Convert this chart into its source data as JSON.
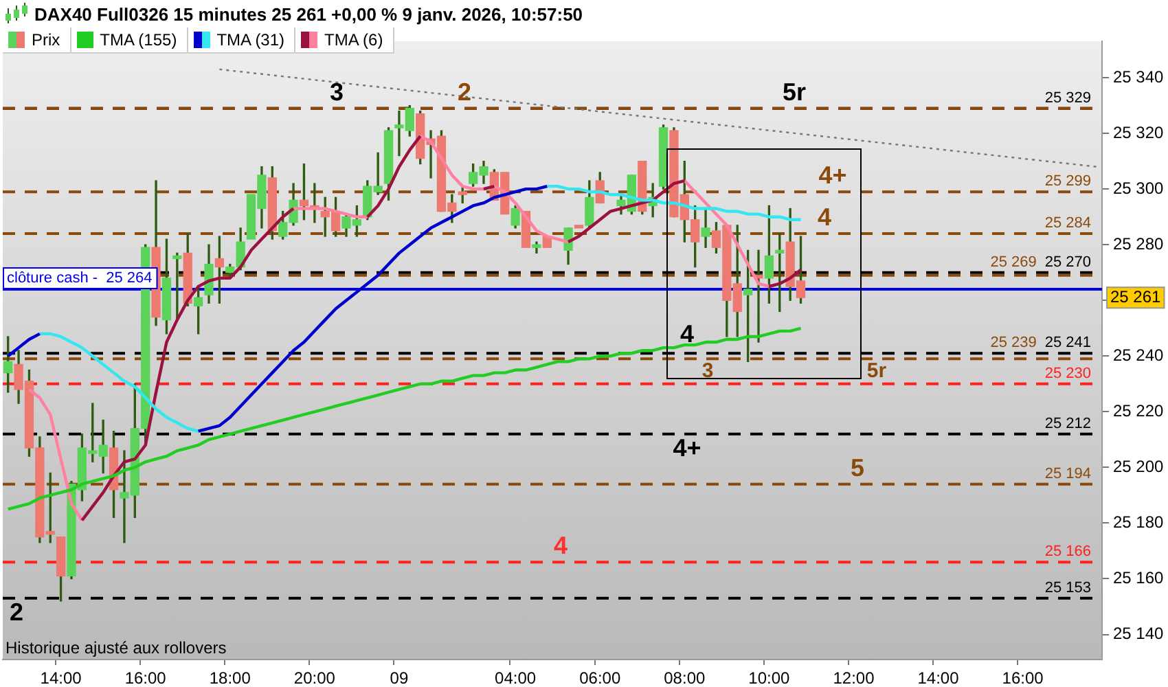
{
  "chart_data": {
    "type": "candlestick",
    "title": "DAX40 Full0326 15 minutes 25 261 +0,00 % 9 janv. 2026, 10:57:50",
    "categories": [
      null,
      null,
      null,
      null,
      null,
      "14:00",
      null,
      null,
      null,
      null,
      null,
      null,
      null,
      "16:00",
      null,
      null,
      null,
      null,
      null,
      null,
      null,
      "18:00",
      null,
      null,
      null,
      null,
      null,
      null,
      null,
      "20:00",
      null,
      null,
      null,
      null,
      null,
      null,
      null,
      "09",
      null,
      null,
      null,
      null,
      null,
      null,
      null,
      null,
      null,
      null,
      "04:00",
      null,
      null,
      null,
      null,
      null,
      null,
      null,
      "06:00",
      null,
      null,
      null,
      null,
      null,
      null,
      null,
      "08:00",
      null,
      null,
      null,
      null,
      null,
      null,
      null,
      "10:00",
      null,
      null,
      null,
      null,
      null,
      null,
      null,
      "12:00",
      null,
      null,
      null,
      null,
      null,
      null,
      null,
      "14:00",
      null,
      null,
      null,
      null,
      null,
      null,
      null,
      "16:00",
      null,
      null,
      null,
      null,
      null,
      null,
      null
    ],
    "series": [
      {
        "type": "line",
        "color": "#777777",
        "line_style": "dotted",
        "values": [
          null,
          null,
          null,
          null,
          null,
          null,
          null,
          null,
          null,
          null,
          null,
          null,
          null,
          null,
          null,
          null,
          null,
          null,
          null,
          null,
          25343,
          null,
          null,
          null,
          null,
          null,
          null,
          null,
          null,
          null,
          null,
          null,
          null,
          null,
          null,
          null,
          null,
          null,
          null,
          null,
          null,
          null,
          null,
          null,
          null,
          null,
          null,
          null,
          null,
          null,
          null,
          null,
          null,
          null,
          null,
          null,
          null,
          null,
          null,
          null,
          null,
          null,
          null,
          null,
          null,
          null,
          null,
          null,
          null,
          null,
          null,
          null,
          null,
          null,
          null,
          null,
          null,
          null,
          null,
          null,
          null,
          null,
          null,
          null,
          null,
          null,
          null,
          null,
          null,
          null,
          null,
          null,
          null,
          null,
          null,
          null,
          null,
          null,
          null,
          null,
          null,
          null,
          null,
          25308
        ]
      },
      {
        "name": "Prix",
        "ohlc": [
          [
            25234,
            25247,
            25227,
            25238
          ],
          [
            25237,
            25242,
            25223,
            25228
          ],
          [
            25231,
            25235,
            25204,
            25207
          ],
          [
            25207,
            25211,
            25173,
            25175
          ],
          [
            25177,
            25198,
            25173,
            25176
          ],
          [
            25175,
            25175,
            25152,
            25161
          ],
          [
            25161,
            25195,
            25160,
            25194
          ],
          [
            25192,
            25212,
            25188,
            25207
          ],
          [
            25205,
            25223,
            25202,
            25206
          ],
          [
            25204,
            25217,
            25198,
            25208
          ],
          [
            25207,
            25213,
            25182,
            25192
          ],
          [
            25189,
            25206,
            25173,
            25191
          ],
          [
            25190,
            25230,
            25182,
            25214
          ],
          [
            25214,
            25280,
            25208,
            25279
          ],
          [
            25279,
            25303,
            25251,
            25254
          ],
          [
            25253,
            25282,
            25248,
            25268
          ],
          [
            25275,
            25277,
            25253,
            25276
          ],
          [
            25277,
            25284,
            25258,
            25259
          ],
          [
            25258,
            25265,
            25248,
            25261
          ],
          [
            25262,
            25280,
            25259,
            25273
          ],
          [
            25275,
            25283,
            25259,
            25272
          ],
          [
            25270,
            25273,
            25268,
            25272
          ],
          [
            25272,
            25286,
            25271,
            25281
          ],
          [
            25282,
            25298,
            25282,
            25298
          ],
          [
            25293,
            25308,
            25286,
            25305
          ],
          [
            25304,
            25308,
            25282,
            25285
          ],
          [
            25283,
            25292,
            25282,
            25288
          ],
          [
            25288,
            25302,
            25287,
            25296
          ],
          [
            25296,
            25309,
            25289,
            25294
          ],
          [
            25294,
            25302,
            25288,
            25293
          ],
          [
            25292,
            25297,
            25283,
            25290
          ],
          [
            25292,
            25297,
            25283,
            25285
          ],
          [
            25286,
            25291,
            25283,
            25290
          ],
          [
            25287,
            25294,
            25283,
            25289
          ],
          [
            25290,
            25303,
            25289,
            25301
          ],
          [
            25299,
            25313,
            25298,
            25301
          ],
          [
            25302,
            25322,
            25296,
            25321
          ],
          [
            25322,
            25328,
            25312,
            25323
          ],
          [
            25321,
            25330,
            25319,
            25329
          ],
          [
            25327,
            25328,
            25309,
            25311
          ],
          [
            25318,
            25321,
            25304,
            25316
          ],
          [
            25319,
            25321,
            25292,
            25292
          ],
          [
            25295,
            25298,
            25288,
            25292
          ],
          [
            25299,
            25301,
            25295,
            25298
          ],
          [
            25302,
            25309,
            25301,
            25306
          ],
          [
            25305,
            25310,
            25302,
            25308
          ],
          [
            25306,
            25307,
            25296,
            25296
          ],
          [
            25306,
            25306,
            25291,
            25291
          ],
          [
            25287,
            25294,
            25286,
            25293
          ],
          [
            25292,
            25292,
            25279,
            25279
          ],
          [
            25279,
            25281,
            25277,
            25280
          ],
          [
            25283,
            25283,
            25279,
            25279
          ],
          null,
          [
            25278,
            25286,
            25273,
            25286
          ],
          [
            25287,
            25287,
            25286,
            25286
          ],
          [
            25287,
            25303,
            25286,
            25297
          ],
          [
            25303,
            25306,
            25295,
            25295
          ],
          null,
          [
            25294,
            25298,
            25291,
            25296
          ],
          [
            25292,
            25305,
            25291,
            25305
          ],
          [
            25310,
            25310,
            25291,
            25292
          ],
          [
            25294,
            25302,
            25290,
            25297
          ],
          [
            25301,
            25323,
            25300,
            25322
          ],
          [
            25321,
            25322,
            25290,
            25290
          ],
          [
            25298,
            25310,
            25281,
            25289
          ],
          [
            25289,
            25294,
            25272,
            25281
          ],
          [
            25283,
            25293,
            25279,
            25286
          ],
          [
            25285,
            25288,
            25277,
            25279
          ],
          [
            25287,
            25287,
            25247,
            25260
          ],
          [
            25266,
            25287,
            25247,
            25256
          ],
          [
            25262,
            25278,
            25238,
            25264
          ],
          [
            25269,
            25278,
            25245,
            25268
          ],
          [
            25268,
            25294,
            25259,
            25276
          ],
          [
            25277,
            25284,
            25256,
            25278
          ],
          [
            25281,
            25293,
            25260,
            25265
          ],
          [
            25267,
            25283,
            25259,
            25261
          ],
          null,
          null,
          null,
          null,
          null,
          null,
          null,
          null,
          null,
          null,
          null,
          null,
          null,
          null,
          null,
          null,
          null,
          null,
          null,
          null,
          null,
          null,
          null,
          null,
          null,
          null,
          null,
          null
        ],
        "colors": [
          "#5bd35b",
          "#ec7a70",
          "#ec7a70",
          "#ec7a70",
          "#ec7a70",
          "#ec7a70",
          "#5bd35b",
          "#5bd35b",
          "#5bd35b",
          "#5bd35b",
          "#ec7a70",
          "#5bd35b",
          "#5bd35b",
          "#5bd35b",
          "#ec7a70",
          "#5bd35b",
          "#5bd35b",
          "#ec7a70",
          "#5bd35b",
          "#5bd35b",
          "#ec7a70",
          "#5bd35b",
          "#5bd35b",
          "#5bd35b",
          "#5bd35b",
          "#ec7a70",
          "#5bd35b",
          "#5bd35b",
          "#ec7a70",
          "#ec7a70",
          "#ec7a70",
          "#ec7a70",
          "#5bd35b",
          "#5bd35b",
          "#5bd35b",
          "#5bd35b",
          "#5bd35b",
          "#5bd35b",
          "#5bd35b",
          "#ec7a70",
          "#ec7a70",
          "#ec7a70",
          "#ec7a70",
          "#ec7a70",
          "#5bd35b",
          "#5bd35b",
          "#ec7a70",
          "#ec7a70",
          "#5bd35b",
          "#ec7a70",
          "#5bd35b",
          "#ec7a70",
          null,
          "#5bd35b",
          "#ec7a70",
          "#5bd35b",
          "#ec7a70",
          null,
          "#5bd35b",
          "#5bd35b",
          "#ec7a70",
          "#5bd35b",
          "#5bd35b",
          "#ec7a70",
          "#ec7a70",
          "#ec7a70",
          "#5bd35b",
          "#ec7a70",
          "#ec7a70",
          "#ec7a70",
          "#5bd35b",
          "#ec7a70",
          "#5bd35b",
          "#5bd35b",
          "#ec7a70",
          "#ec7a70",
          null,
          null,
          null,
          null,
          null,
          null,
          null,
          null,
          null,
          null,
          null,
          null,
          null,
          null,
          null,
          null,
          null,
          null,
          null,
          null,
          null,
          null,
          null,
          null,
          null,
          null,
          null,
          null
        ]
      },
      {
        "name": "TMA (155)",
        "type": "line",
        "color": "#22cc22",
        "values": [
          25185,
          25186,
          25187,
          25189,
          25190,
          25191,
          25192,
          25194,
          25195,
          25196,
          25197,
          25199,
          25200,
          25202,
          25203,
          25204,
          25206,
          25207,
          25208,
          25210,
          25211,
          25212,
          25213,
          25214,
          25215,
          25216,
          25217,
          25218,
          25219,
          25220,
          25221,
          25222,
          25223,
          25224,
          25225,
          25226,
          25227,
          25228,
          25229,
          25230,
          25230,
          25231,
          25231,
          25232,
          25233,
          25233,
          25234,
          25234,
          25235,
          25235,
          25236,
          25237,
          25238,
          25238,
          25239,
          25239,
          25240,
          25240,
          25241,
          25241,
          25242,
          25242,
          25243,
          25243,
          25244,
          25244,
          25245,
          25245,
          25246,
          25246,
          25247,
          25247,
          25248,
          25249,
          25249,
          25250,
          null,
          null,
          null,
          null,
          null,
          null,
          null,
          null,
          null,
          null,
          null,
          null,
          null,
          null,
          null,
          null,
          null,
          null,
          null,
          null,
          null,
          null,
          null,
          null,
          null,
          null,
          null,
          null
        ]
      },
      {
        "name": "TMA (31)",
        "type": "line",
        "color": "#0000cc",
        "values": [
          25240,
          25243,
          25246,
          25248,
          null,
          null,
          null,
          null,
          null,
          null,
          null,
          null,
          null,
          null,
          null,
          null,
          null,
          null,
          25213,
          25214,
          25215,
          25218,
          25222,
          25226,
          25230,
          25234,
          25238,
          25242,
          25245,
          25249,
          25253,
          25257,
          25260,
          25263,
          25266,
          25269,
          25273,
          25277,
          25280,
          25283,
          25286,
          25288,
          25290,
          25292,
          25294,
          25295,
          25297,
          25298,
          25299,
          25300,
          25300,
          25301,
          null,
          null,
          null,
          null,
          null,
          null,
          null,
          null,
          null,
          null,
          null,
          null,
          null,
          null,
          null,
          null,
          null,
          null,
          null,
          null,
          null,
          null,
          null,
          null,
          null,
          null,
          null,
          null,
          null,
          null,
          null,
          null,
          null,
          null,
          null,
          null,
          null,
          null,
          null,
          null,
          null,
          null,
          null,
          null,
          null,
          null,
          null,
          null,
          null,
          null,
          null,
          null
        ]
      },
      {
        "type": "line",
        "color": "#33e6f0",
        "values": [
          null,
          null,
          null,
          25248,
          25248,
          25247,
          25245,
          25243,
          25240,
          25237,
          25234,
          25231,
          25229,
          25225,
          25221,
          25218,
          25216,
          25214,
          25213,
          null,
          null,
          null,
          null,
          null,
          null,
          null,
          null,
          null,
          null,
          null,
          null,
          null,
          null,
          null,
          null,
          null,
          null,
          null,
          null,
          null,
          null,
          null,
          null,
          null,
          null,
          null,
          null,
          null,
          null,
          null,
          null,
          25301,
          25301,
          25300,
          25300,
          25299,
          25299,
          25298,
          25298,
          25297,
          25296,
          25296,
          25295,
          25295,
          25294,
          25293,
          25293,
          25293,
          25292,
          25292,
          25291,
          25291,
          25290,
          25290,
          25289,
          25289,
          null,
          null,
          null,
          null,
          null,
          null,
          null,
          null,
          null,
          null,
          null,
          null,
          null,
          null,
          null,
          null,
          null,
          null,
          null,
          null,
          null,
          null,
          null,
          null,
          null,
          null,
          null,
          null
        ]
      },
      {
        "name": "TMA (6)",
        "type": "line",
        "color": "#9b1240",
        "values": [
          null,
          null,
          null,
          null,
          null,
          null,
          null,
          25181,
          25186,
          25191,
          25197,
          25202,
          25203,
          25208,
          25227,
          25245,
          25253,
          25260,
          25265,
          25267,
          25268,
          25268,
          25272,
          25278,
          25282,
          25286,
          25290,
          25293,
          null,
          null,
          null,
          null,
          null,
          null,
          25290,
          25294,
          25300,
          25308,
          25314,
          25319,
          null,
          null,
          null,
          null,
          null,
          25300,
          25301,
          null,
          null,
          null,
          null,
          null,
          null,
          25281,
          25283,
          25286,
          25289,
          25292,
          25293,
          25294,
          25295,
          25296,
          25299,
          25302,
          25303,
          null,
          null,
          null,
          null,
          null,
          null,
          null,
          25265,
          25266,
          25268,
          25271,
          null,
          null,
          null,
          null,
          null,
          null,
          null,
          null,
          null,
          null,
          null,
          null,
          null,
          null,
          null,
          null,
          null,
          null,
          null,
          null,
          null,
          null,
          null,
          null,
          null,
          null,
          null,
          null
        ]
      },
      {
        "type": "line",
        "color": "#ff80a0",
        "values": [
          null,
          null,
          25228,
          25225,
          25219,
          25203,
          25187,
          25181,
          null,
          null,
          null,
          null,
          null,
          null,
          null,
          null,
          null,
          null,
          null,
          null,
          null,
          null,
          null,
          null,
          null,
          null,
          null,
          25293,
          25293,
          25293,
          25293,
          25292,
          25291,
          25290,
          25290,
          null,
          null,
          null,
          null,
          25319,
          25317,
          25311,
          25305,
          25301,
          25300,
          25300,
          25301,
          25299,
          25295,
          25290,
          25285,
          25283,
          25282,
          25281,
          null,
          null,
          null,
          null,
          null,
          null,
          null,
          null,
          null,
          null,
          25303,
          25299,
          25295,
          25291,
          25287,
          25280,
          25273,
          25266,
          25265,
          null,
          null,
          null,
          null,
          null,
          null,
          null,
          null,
          null,
          null,
          null,
          null,
          null,
          null,
          null,
          null,
          null,
          null,
          null,
          null,
          null,
          null,
          null,
          null,
          null,
          null,
          null,
          null,
          null,
          null,
          null
        ]
      }
    ],
    "ylim": [
      25131,
      25353
    ],
    "yticks": [
      {
        "value": 25140,
        "label": "25 140"
      },
      {
        "value": 25160,
        "label": "25 160"
      },
      {
        "value": 25180,
        "label": "25 180"
      },
      {
        "value": 25200,
        "label": "25 200"
      },
      {
        "value": 25220,
        "label": "25 220"
      },
      {
        "value": 25240,
        "label": "25 240"
      },
      {
        "value": 25260,
        "label": null
      },
      {
        "value": 25280,
        "label": "25 280"
      },
      {
        "value": 25300,
        "label": "25 300"
      },
      {
        "value": 25320,
        "label": "25 320"
      },
      {
        "value": 25340,
        "label": "25 340"
      }
    ],
    "ref_lines": [
      {
        "axis": "y",
        "value": 25329,
        "label": "25 329",
        "color": "#000000",
        "line_style": "dashed"
      },
      {
        "axis": "y",
        "value": 25329,
        "color": "#8b4a0c",
        "line_style": "dashed"
      },
      {
        "axis": "y",
        "value": 25299,
        "label": "25 299",
        "color": "#8b4a0c",
        "line_style": "dashed"
      },
      {
        "axis": "y",
        "value": 25284,
        "label": "25 284",
        "color": "#8b4a0c",
        "line_style": "dashed"
      },
      {
        "axis": "y",
        "value": 25270,
        "label": "25 270",
        "color": "#000000",
        "line_style": "dashed"
      },
      {
        "axis": "y",
        "value": 25269,
        "label": "25 269",
        "color": "#8b4a0c",
        "line_style": "dashed"
      },
      {
        "axis": "y",
        "value": 25264,
        "label": "clôture cash -  25 264",
        "color": "#0000ee",
        "line_style": "solid"
      },
      {
        "axis": "y",
        "value": 25241,
        "label": "25 241",
        "color": "#000000",
        "line_style": "dashed"
      },
      {
        "axis": "y",
        "value": 25239,
        "label": "25 239",
        "color": "#8b4a0c",
        "line_style": "dashed"
      },
      {
        "axis": "y",
        "value": 25230,
        "label": "25 230",
        "color": "#ff2020",
        "line_style": "dashed"
      },
      {
        "axis": "y",
        "value": 25212,
        "label": "25 212",
        "color": "#000000",
        "line_style": "dashed"
      },
      {
        "axis": "y",
        "value": 25194,
        "label": "25 194",
        "color": "#8b4a0c",
        "line_style": "dashed"
      },
      {
        "axis": "y",
        "value": 25166,
        "label": "25 166",
        "color": "#ff2020",
        "line_style": "dashed"
      },
      {
        "axis": "y",
        "value": 25153,
        "label": "25 153",
        "color": "#000000",
        "line_style": "dashed"
      }
    ],
    "annotations": [
      {
        "text": "3",
        "y": 25329
      },
      {
        "text": "2",
        "y": 25329
      },
      {
        "text": "5r",
        "y": 25329
      },
      {
        "text": "4+",
        "y": 25299
      },
      {
        "text": "4",
        "y": 25284
      },
      {
        "text": "4",
        "y": 25241
      },
      {
        "text": "3",
        "y": 25239
      },
      {
        "text": "5r",
        "y": 25239
      },
      {
        "text": "4+",
        "y": 25212
      },
      {
        "text": "5",
        "y": 25194
      },
      {
        "text": "4",
        "y": 25166
      },
      {
        "text": "2",
        "y": 25153
      },
      {
        "text": "25 261",
        "y": 25261
      },
      "Historique ajusté aux rollovers"
    ],
    "legend": "top left",
    "grid": false,
    "marker": "none"
  }
}
